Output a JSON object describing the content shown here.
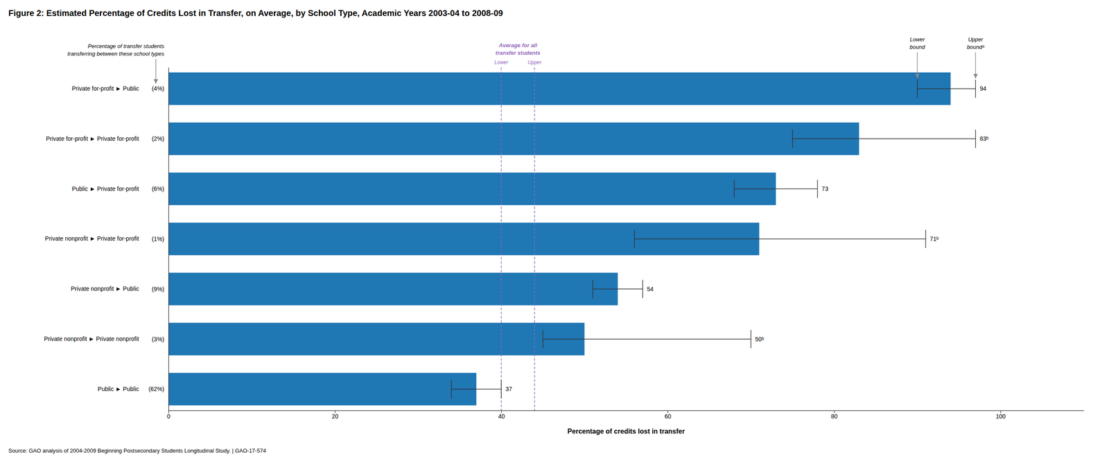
{
  "chart_data": {
    "type": "bar",
    "orientation": "horizontal",
    "title": "Figure 2: Estimated Percentage of Credits Lost in Transfer, on Average, by School Type, Academic Years 2003-04 to 2008-09",
    "xlabel": "Percentage of credits lost in transfer",
    "footnote": "Source: GAO analysis of 2004-2009 Beginning Postsecondary Students Longitudinal Study.  |  GAO-17-574",
    "categories": [
      "Public ► Public",
      "Private nonprofit ► Private nonprofit",
      "Private nonprofit ► Public",
      "Private nonprofit ► Private for-profit",
      "Public ► Private for-profit",
      "Private for-profit ► Private for-profit",
      "Private for-profit ► Public"
    ],
    "pct_labels": [
      "(62%)",
      "(3%)",
      "(9%)",
      "(1%)",
      "(6%)",
      "(2%)",
      "(4%)"
    ],
    "category_note": "Percentage of transfer students\ntransferring between these school types",
    "values": [
      37,
      50,
      54,
      71,
      73,
      83,
      94
    ],
    "value_labels": [
      "37",
      "50ᵇ",
      "54",
      "71ᵇ",
      "73",
      "83ᵇ",
      "94"
    ],
    "data_labels": true,
    "error_bar_lower": [
      3,
      5,
      3,
      15,
      5,
      8,
      4
    ],
    "error_bar_upper": [
      3,
      20,
      3,
      20,
      5,
      14,
      3
    ],
    "error_bar_labels": {
      "lower": "Lower\nbound",
      "upper": "Upper\nboundᵃ"
    },
    "averages": [
      {
        "label": "Lower",
        "value": 40
      },
      {
        "label": "Upper",
        "value": 44
      }
    ],
    "average_label": "Average for all\ntransfer students",
    "xlim": [
      0,
      110
    ],
    "xticks": [
      0,
      20,
      40,
      60,
      80,
      100
    ],
    "grid": false
  }
}
